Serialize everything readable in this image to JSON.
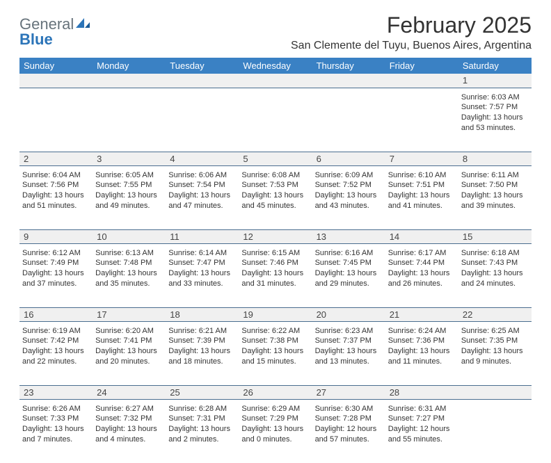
{
  "logo": {
    "text1": "General",
    "text2": "Blue"
  },
  "title": "February 2025",
  "location": "San Clemente del Tuyu, Buenos Aires, Argentina",
  "weekdays": [
    "Sunday",
    "Monday",
    "Tuesday",
    "Wednesday",
    "Thursday",
    "Friday",
    "Saturday"
  ],
  "colors": {
    "header_bg": "#3a81c4",
    "header_text": "#ffffff",
    "row_sep": "#4a6d8f",
    "daynum_bg": "#f0f0f0",
    "logo_gray": "#67737b",
    "logo_blue": "#2b74b8"
  },
  "weeks": [
    [
      {
        "num": "",
        "sunrise": "",
        "sunset": "",
        "daylight": ""
      },
      {
        "num": "",
        "sunrise": "",
        "sunset": "",
        "daylight": ""
      },
      {
        "num": "",
        "sunrise": "",
        "sunset": "",
        "daylight": ""
      },
      {
        "num": "",
        "sunrise": "",
        "sunset": "",
        "daylight": ""
      },
      {
        "num": "",
        "sunrise": "",
        "sunset": "",
        "daylight": ""
      },
      {
        "num": "",
        "sunrise": "",
        "sunset": "",
        "daylight": ""
      },
      {
        "num": "1",
        "sunrise": "Sunrise: 6:03 AM",
        "sunset": "Sunset: 7:57 PM",
        "daylight": "Daylight: 13 hours and 53 minutes."
      }
    ],
    [
      {
        "num": "2",
        "sunrise": "Sunrise: 6:04 AM",
        "sunset": "Sunset: 7:56 PM",
        "daylight": "Daylight: 13 hours and 51 minutes."
      },
      {
        "num": "3",
        "sunrise": "Sunrise: 6:05 AM",
        "sunset": "Sunset: 7:55 PM",
        "daylight": "Daylight: 13 hours and 49 minutes."
      },
      {
        "num": "4",
        "sunrise": "Sunrise: 6:06 AM",
        "sunset": "Sunset: 7:54 PM",
        "daylight": "Daylight: 13 hours and 47 minutes."
      },
      {
        "num": "5",
        "sunrise": "Sunrise: 6:08 AM",
        "sunset": "Sunset: 7:53 PM",
        "daylight": "Daylight: 13 hours and 45 minutes."
      },
      {
        "num": "6",
        "sunrise": "Sunrise: 6:09 AM",
        "sunset": "Sunset: 7:52 PM",
        "daylight": "Daylight: 13 hours and 43 minutes."
      },
      {
        "num": "7",
        "sunrise": "Sunrise: 6:10 AM",
        "sunset": "Sunset: 7:51 PM",
        "daylight": "Daylight: 13 hours and 41 minutes."
      },
      {
        "num": "8",
        "sunrise": "Sunrise: 6:11 AM",
        "sunset": "Sunset: 7:50 PM",
        "daylight": "Daylight: 13 hours and 39 minutes."
      }
    ],
    [
      {
        "num": "9",
        "sunrise": "Sunrise: 6:12 AM",
        "sunset": "Sunset: 7:49 PM",
        "daylight": "Daylight: 13 hours and 37 minutes."
      },
      {
        "num": "10",
        "sunrise": "Sunrise: 6:13 AM",
        "sunset": "Sunset: 7:48 PM",
        "daylight": "Daylight: 13 hours and 35 minutes."
      },
      {
        "num": "11",
        "sunrise": "Sunrise: 6:14 AM",
        "sunset": "Sunset: 7:47 PM",
        "daylight": "Daylight: 13 hours and 33 minutes."
      },
      {
        "num": "12",
        "sunrise": "Sunrise: 6:15 AM",
        "sunset": "Sunset: 7:46 PM",
        "daylight": "Daylight: 13 hours and 31 minutes."
      },
      {
        "num": "13",
        "sunrise": "Sunrise: 6:16 AM",
        "sunset": "Sunset: 7:45 PM",
        "daylight": "Daylight: 13 hours and 29 minutes."
      },
      {
        "num": "14",
        "sunrise": "Sunrise: 6:17 AM",
        "sunset": "Sunset: 7:44 PM",
        "daylight": "Daylight: 13 hours and 26 minutes."
      },
      {
        "num": "15",
        "sunrise": "Sunrise: 6:18 AM",
        "sunset": "Sunset: 7:43 PM",
        "daylight": "Daylight: 13 hours and 24 minutes."
      }
    ],
    [
      {
        "num": "16",
        "sunrise": "Sunrise: 6:19 AM",
        "sunset": "Sunset: 7:42 PM",
        "daylight": "Daylight: 13 hours and 22 minutes."
      },
      {
        "num": "17",
        "sunrise": "Sunrise: 6:20 AM",
        "sunset": "Sunset: 7:41 PM",
        "daylight": "Daylight: 13 hours and 20 minutes."
      },
      {
        "num": "18",
        "sunrise": "Sunrise: 6:21 AM",
        "sunset": "Sunset: 7:39 PM",
        "daylight": "Daylight: 13 hours and 18 minutes."
      },
      {
        "num": "19",
        "sunrise": "Sunrise: 6:22 AM",
        "sunset": "Sunset: 7:38 PM",
        "daylight": "Daylight: 13 hours and 15 minutes."
      },
      {
        "num": "20",
        "sunrise": "Sunrise: 6:23 AM",
        "sunset": "Sunset: 7:37 PM",
        "daylight": "Daylight: 13 hours and 13 minutes."
      },
      {
        "num": "21",
        "sunrise": "Sunrise: 6:24 AM",
        "sunset": "Sunset: 7:36 PM",
        "daylight": "Daylight: 13 hours and 11 minutes."
      },
      {
        "num": "22",
        "sunrise": "Sunrise: 6:25 AM",
        "sunset": "Sunset: 7:35 PM",
        "daylight": "Daylight: 13 hours and 9 minutes."
      }
    ],
    [
      {
        "num": "23",
        "sunrise": "Sunrise: 6:26 AM",
        "sunset": "Sunset: 7:33 PM",
        "daylight": "Daylight: 13 hours and 7 minutes."
      },
      {
        "num": "24",
        "sunrise": "Sunrise: 6:27 AM",
        "sunset": "Sunset: 7:32 PM",
        "daylight": "Daylight: 13 hours and 4 minutes."
      },
      {
        "num": "25",
        "sunrise": "Sunrise: 6:28 AM",
        "sunset": "Sunset: 7:31 PM",
        "daylight": "Daylight: 13 hours and 2 minutes."
      },
      {
        "num": "26",
        "sunrise": "Sunrise: 6:29 AM",
        "sunset": "Sunset: 7:29 PM",
        "daylight": "Daylight: 13 hours and 0 minutes."
      },
      {
        "num": "27",
        "sunrise": "Sunrise: 6:30 AM",
        "sunset": "Sunset: 7:28 PM",
        "daylight": "Daylight: 12 hours and 57 minutes."
      },
      {
        "num": "28",
        "sunrise": "Sunrise: 6:31 AM",
        "sunset": "Sunset: 7:27 PM",
        "daylight": "Daylight: 12 hours and 55 minutes."
      },
      {
        "num": "",
        "sunrise": "",
        "sunset": "",
        "daylight": ""
      }
    ]
  ]
}
